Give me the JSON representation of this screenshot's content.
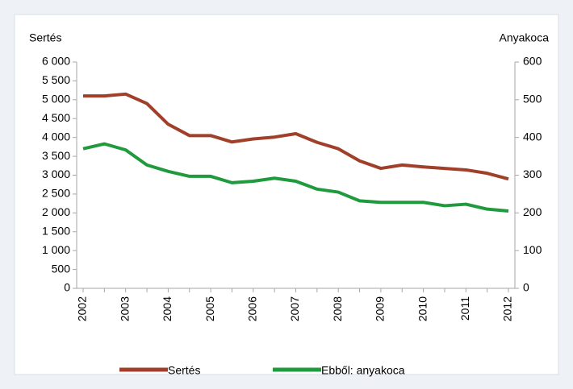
{
  "chart_data": {
    "type": "line",
    "y_label": "Sertés",
    "y2_label": "Anyakoca",
    "categories": [
      "2002",
      null,
      "2003",
      null,
      "2004",
      null,
      "2005",
      null,
      "2006",
      null,
      "2007",
      null,
      "2008",
      null,
      "2009",
      null,
      "2010",
      null,
      "2011",
      null,
      "2012"
    ],
    "series": [
      {
        "name": "Sertés",
        "color": "#a0402a",
        "values": [
          5100,
          5100,
          5150,
          4900,
          4350,
          4050,
          4050,
          3880,
          3960,
          4010,
          4100,
          3870,
          3700,
          3380,
          3180,
          3270,
          3220,
          3180,
          3140,
          3050,
          2900
        ]
      },
      {
        "name": "Ebből: anyakoca",
        "color": "#1f9a3c",
        "axis": "y2",
        "values": [
          370,
          383,
          367,
          327,
          310,
          297,
          297,
          280,
          284,
          292,
          284,
          263,
          255,
          232,
          228,
          228,
          228,
          219,
          223,
          210,
          205
        ]
      }
    ],
    "ylim": [
      0,
      6000
    ],
    "yticks": [
      0,
      500,
      {
        "value": 1000,
        "label": "1 000"
      },
      {
        "value": 1500,
        "label": "1 500"
      },
      {
        "value": 2000,
        "label": "2 000"
      },
      {
        "value": 2500,
        "label": "2 500"
      },
      {
        "value": 3000,
        "label": "3 000"
      },
      {
        "value": 3500,
        "label": "3 500"
      },
      {
        "value": 4000,
        "label": "4 000"
      },
      {
        "value": 4500,
        "label": "4 500"
      },
      {
        "value": 5000,
        "label": "5 000"
      },
      {
        "value": 5500,
        "label": "5 500"
      },
      {
        "value": 6000,
        "label": "6 000"
      }
    ],
    "y2lim": [
      0,
      600
    ],
    "y2ticks": [
      0,
      100,
      200,
      300,
      400,
      500,
      600
    ],
    "legend": "bottom"
  }
}
